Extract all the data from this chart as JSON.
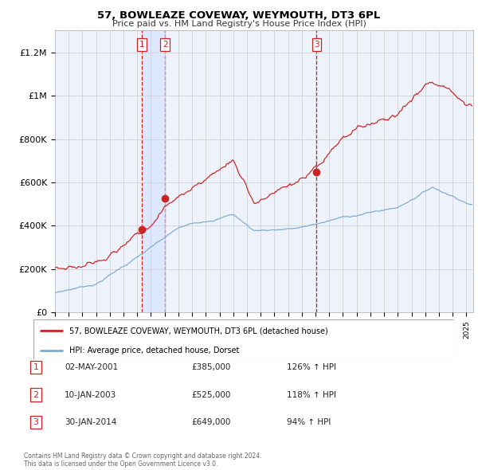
{
  "title": "57, BOWLEAZE COVEWAY, WEYMOUTH, DT3 6PL",
  "subtitle": "Price paid vs. HM Land Registry's House Price Index (HPI)",
  "ylim": [
    0,
    1300000
  ],
  "xlim_start": 1995.0,
  "xlim_end": 2025.5,
  "background_color": "#ffffff",
  "plot_bg_color": "#eef2fb",
  "grid_color": "#cccccc",
  "sale1_date_year": 2001.33,
  "sale1_price": 385000,
  "sale2_date_year": 2003.03,
  "sale2_price": 525000,
  "sale3_date_year": 2014.08,
  "sale3_price": 649000,
  "sale_color": "#cc2222",
  "hpi_color": "#7aaad4",
  "shade_color": "#dde8ff",
  "vline_color": "#cc2222",
  "legend_house_label": "57, BOWLEAZE COVEWAY, WEYMOUTH, DT3 6PL (detached house)",
  "legend_hpi_label": "HPI: Average price, detached house, Dorset",
  "table_rows": [
    {
      "num": "1",
      "date": "02-MAY-2001",
      "price": "£385,000",
      "hpi": "126% ↑ HPI"
    },
    {
      "num": "2",
      "date": "10-JAN-2003",
      "price": "£525,000",
      "hpi": "118% ↑ HPI"
    },
    {
      "num": "3",
      "date": "30-JAN-2014",
      "price": "£649,000",
      "hpi": "94% ↑ HPI"
    }
  ],
  "footnote": "Contains HM Land Registry data © Crown copyright and database right 2024.\nThis data is licensed under the Open Government Licence v3.0.",
  "ytick_labels": [
    "£0",
    "£200K",
    "£400K",
    "£600K",
    "£800K",
    "£1M",
    "£1.2M"
  ],
  "ytick_values": [
    0,
    200000,
    400000,
    600000,
    800000,
    1000000,
    1200000
  ]
}
